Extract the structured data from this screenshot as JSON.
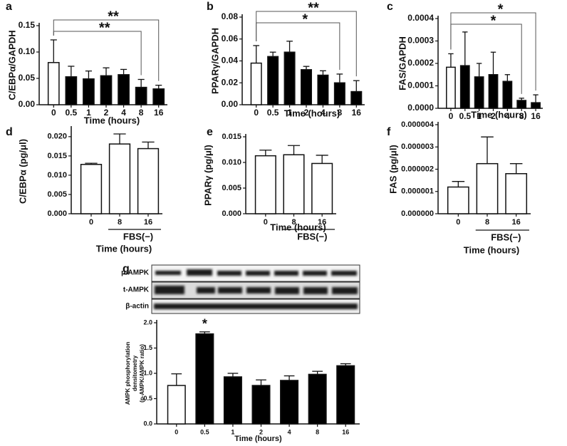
{
  "chart_data": [
    {
      "label": "a",
      "type": "bar",
      "ylabel": "C/EBPα/GAPDH",
      "xlabel": "Time (hours)",
      "categories": [
        "0",
        "0.5",
        "1",
        "2",
        "4",
        "8",
        "16"
      ],
      "values": [
        0.08,
        0.053,
        0.049,
        0.055,
        0.057,
        0.033,
        0.03
      ],
      "errors": [
        0.043,
        0.02,
        0.015,
        0.015,
        0.01,
        0.015,
        0.007
      ],
      "colors": [
        "#ffffff",
        "#000000",
        "#000000",
        "#000000",
        "#000000",
        "#000000",
        "#000000"
      ],
      "ylim": [
        0,
        0.15
      ],
      "yticks": [
        {
          "value": 0,
          "label": "0.00"
        },
        0.05,
        {
          "value": 0.1,
          "label": "0.10"
        },
        0.15
      ],
      "annotations": [
        {
          "text": "**",
          "span": [
            "0",
            "8"
          ]
        },
        {
          "text": "**",
          "span": [
            "0",
            "16"
          ]
        }
      ]
    },
    {
      "label": "b",
      "type": "bar",
      "ylabel": "PPARγ/GAPDH",
      "xlabel": "Time (hours)",
      "categories": [
        "0",
        "0.5",
        "1",
        "2",
        "4",
        "8",
        "16"
      ],
      "values": [
        0.038,
        0.044,
        0.048,
        0.032,
        0.027,
        0.02,
        0.012
      ],
      "errors": [
        0.016,
        0.004,
        0.01,
        0.003,
        0.004,
        0.008,
        0.01
      ],
      "colors": [
        "#ffffff",
        "#000000",
        "#000000",
        "#000000",
        "#000000",
        "#000000",
        "#000000"
      ],
      "ylim": [
        0,
        0.08
      ],
      "yticks": [
        {
          "value": 0,
          "label": "0.00"
        },
        0.02,
        0.04,
        0.06,
        0.08
      ],
      "annotations": [
        {
          "text": "*",
          "span": [
            "0",
            "8"
          ]
        },
        {
          "text": "**",
          "span": [
            "0",
            "16"
          ]
        }
      ]
    },
    {
      "label": "c",
      "type": "bar",
      "ylabel": "FAS/GAPDH",
      "xlabel": "Time (hours)",
      "categories": [
        "0",
        "0.5",
        "1",
        "2",
        "4",
        "8",
        "16"
      ],
      "values": [
        0.000183,
        0.00019,
        0.00014,
        0.00015,
        0.00012,
        3.5e-05,
        2.5e-05
      ],
      "errors": [
        6e-05,
        0.00015,
        6e-05,
        0.0001,
        3e-05,
        1e-05,
        3.5e-05
      ],
      "colors": [
        "#ffffff",
        "#000000",
        "#000000",
        "#000000",
        "#000000",
        "#000000",
        "#000000"
      ],
      "ylim": [
        0,
        0.0004
      ],
      "yticks": [
        {
          "value": 0,
          "label": "0.0000"
        },
        0.0001,
        0.0002,
        0.0003,
        0.0004
      ],
      "annotations": [
        {
          "text": "*",
          "span": [
            "0",
            "8"
          ]
        },
        {
          "text": "*",
          "span": [
            "0",
            "16"
          ]
        }
      ]
    },
    {
      "label": "d",
      "type": "bar",
      "ylabel": "C/EBPα (pg/μl)",
      "xlabel": "Time (hours)",
      "categories": [
        "0",
        "8",
        "16"
      ],
      "values": [
        0.0128,
        0.0181,
        0.0169
      ],
      "errors": [
        0.0003,
        0.0026,
        0.0017
      ],
      "colors": [
        "#ffffff",
        "#ffffff",
        "#ffffff"
      ],
      "ylim": [
        0,
        0.022
      ],
      "yticks": [
        {
          "value": 0,
          "label": "0.000"
        },
        0.005,
        {
          "value": 0.01,
          "label": "0.010"
        },
        0.015,
        {
          "value": 0.02,
          "label": "0.020"
        }
      ],
      "group": {
        "text": "FBS(−)",
        "span": [
          "8",
          "16"
        ]
      }
    },
    {
      "label": "e",
      "type": "bar",
      "ylabel": "PPARγ (pg/μl)",
      "xlabel": "Time (hours)",
      "categories": [
        "0",
        "8",
        "16"
      ],
      "values": [
        0.0113,
        0.0115,
        0.0098
      ],
      "errors": [
        0.0011,
        0.0018,
        0.0016
      ],
      "colors": [
        "#ffffff",
        "#ffffff",
        "#ffffff"
      ],
      "ylim": [
        0,
        0.015
      ],
      "yticks": [
        {
          "value": 0,
          "label": "0.000"
        },
        0.005,
        {
          "value": 0.01,
          "label": "0.010"
        },
        0.015
      ],
      "group": {
        "text": "FBS(−)",
        "span": [
          "8",
          "16"
        ]
      }
    },
    {
      "label": "f",
      "type": "bar",
      "ylabel": "FAS (pg/μl)",
      "xlabel": "Time (hours)",
      "categories": [
        "0",
        "8",
        "16"
      ],
      "values": [
        1.2e-06,
        2.25e-06,
        1.8e-06
      ],
      "errors": [
        2.5e-07,
        1.2e-06,
        4.5e-07
      ],
      "colors": [
        "#ffffff",
        "#ffffff",
        "#ffffff"
      ],
      "ylim": [
        0,
        4e-06
      ],
      "yticks": [
        {
          "value": 0,
          "label": "0.000000"
        },
        1e-06,
        2e-06,
        3e-06,
        4e-06
      ],
      "group": {
        "text": "FBS(−)",
        "span": [
          "8",
          "16"
        ]
      }
    },
    {
      "label": "g",
      "type": "bar",
      "ylabel": [
        "AMPK phosphorylation",
        "densitometry",
        "(p-AMPK/AMPK ratio)"
      ],
      "xlabel": "Time (hours)",
      "categories": [
        "0",
        "0.5",
        "1",
        "2",
        "4",
        "8",
        "16"
      ],
      "values": [
        0.76,
        1.78,
        0.93,
        0.76,
        0.86,
        0.98,
        1.15
      ],
      "errors": [
        0.23,
        0.04,
        0.07,
        0.11,
        0.09,
        0.06,
        0.04
      ],
      "colors": [
        "#ffffff",
        "#000000",
        "#000000",
        "#000000",
        "#000000",
        "#000000",
        "#000000"
      ],
      "ylim": [
        0,
        2
      ],
      "yticks": [
        {
          "value": 0,
          "label": "0.0"
        },
        0.5,
        {
          "value": 1,
          "label": "1.0"
        },
        1.5,
        {
          "value": 2,
          "label": "2.0"
        }
      ],
      "annotations": [
        {
          "text": "*",
          "span": [
            "0.5"
          ]
        }
      ],
      "blot_labels": [
        "p-AMPK",
        "t-AMPK",
        "β-actin"
      ]
    }
  ]
}
